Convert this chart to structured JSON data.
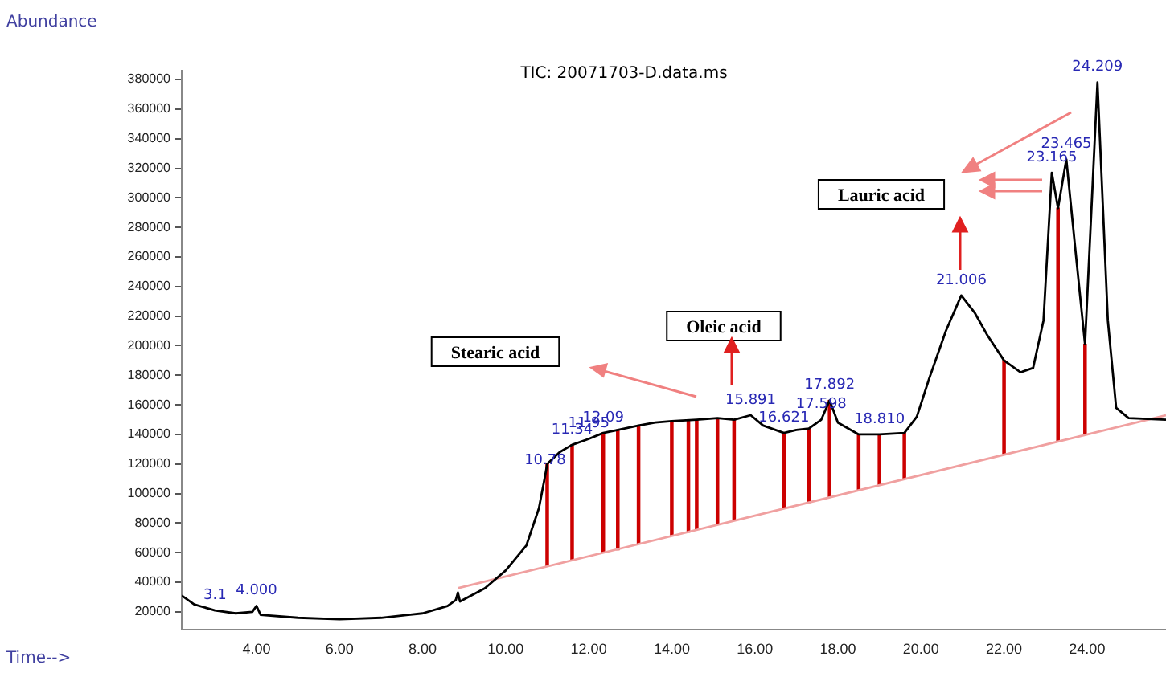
{
  "chart_data": {
    "type": "line",
    "title": "TIC: 20071703-D.data.ms",
    "xlabel": "Time-->",
    "ylabel": "Abundance",
    "xlim": [
      2.2,
      25.9
    ],
    "ylim": [
      8000,
      386000
    ],
    "xticks": [
      {
        "value": 4,
        "label": "4.00"
      },
      {
        "value": 6,
        "label": "6.00"
      },
      {
        "value": 8,
        "label": "8.00"
      },
      {
        "value": 10,
        "label": "10.00"
      },
      {
        "value": 12,
        "label": "12.00"
      },
      {
        "value": 14,
        "label": "14.00"
      },
      {
        "value": 16,
        "label": "16.00"
      },
      {
        "value": 18,
        "label": "18.00"
      },
      {
        "value": 20,
        "label": "20.00"
      },
      {
        "value": 22,
        "label": "22.00"
      },
      {
        "value": 24,
        "label": "24.00"
      }
    ],
    "yticks": [
      20000,
      40000,
      60000,
      80000,
      100000,
      120000,
      140000,
      160000,
      180000,
      200000,
      220000,
      240000,
      260000,
      280000,
      300000,
      320000,
      340000,
      360000,
      380000
    ],
    "grid": false,
    "legend": false,
    "marker": "none",
    "series": [
      {
        "color": "#000000",
        "x": [
          2.2,
          2.5,
          3.0,
          3.5,
          3.9,
          4.0,
          4.1,
          5.0,
          6.0,
          7.0,
          8.0,
          8.6,
          8.8,
          8.85,
          8.9,
          9.5,
          10.0,
          10.5,
          10.8,
          10.95,
          11.0,
          11.3,
          11.6,
          12.0,
          12.35,
          12.7,
          13.2,
          13.6,
          14.0,
          14.6,
          15.1,
          15.5,
          15.9,
          16.2,
          16.7,
          17.0,
          17.3,
          17.6,
          17.8,
          18.0,
          18.5,
          19.0,
          19.6,
          19.9,
          20.2,
          20.6,
          20.97,
          21.3,
          21.6,
          22.0,
          22.4,
          22.7,
          22.95,
          23.15,
          23.3,
          23.5,
          23.7,
          23.95,
          24.25,
          24.5,
          24.7,
          25.0,
          25.9
        ],
        "values": [
          31000,
          25000,
          21000,
          19000,
          20000,
          24000,
          18000,
          16000,
          15000,
          16000,
          19000,
          24000,
          28000,
          33000,
          27000,
          36000,
          48000,
          65000,
          90000,
          112000,
          120000,
          128000,
          133000,
          137000,
          141000,
          143000,
          146000,
          148000,
          149000,
          150000,
          151000,
          150000,
          153000,
          146000,
          141000,
          143000,
          144000,
          150000,
          163000,
          148000,
          140000,
          140000,
          141000,
          152000,
          178000,
          210000,
          234000,
          222000,
          207000,
          190000,
          182000,
          185000,
          217000,
          317000,
          293000,
          326000,
          270000,
          201000,
          378000,
          217000,
          158000,
          151000,
          150000
        ]
      },
      {
        "color": "#f0a0a0",
        "x": [
          8.85,
          25.9
        ],
        "values": [
          36000,
          153000
        ]
      },
      {
        "type": "bar",
        "color": "#cc0000",
        "x": [
          11.0,
          11.6,
          12.35,
          12.7,
          13.2,
          14.0,
          14.4,
          14.6,
          15.1,
          15.5,
          16.7,
          17.3,
          17.8,
          18.5,
          19.0,
          19.6,
          22.0,
          23.3,
          23.95
        ],
        "base": [
          51000,
          55000,
          60000,
          62000,
          66000,
          72000,
          74000,
          76000,
          79000,
          82000,
          90000,
          94000,
          98000,
          102000,
          106000,
          110000,
          127000,
          136000,
          140000
        ],
        "values": [
          69000,
          78000,
          81000,
          81000,
          80000,
          77000,
          76000,
          74000,
          72000,
          68000,
          51000,
          50000,
          65000,
          38000,
          34000,
          31000,
          63000,
          157000,
          61000
        ]
      }
    ],
    "annotations": [
      "Stearic acid",
      "Oleic acid",
      "Lauric acid",
      {
        "text": "3.1",
        "x": 3.0,
        "y": 21000
      },
      {
        "text": "4.000",
        "x": 4.0,
        "y": 24000
      },
      {
        "text": "10.78",
        "x": 10.95,
        "y": 112000
      },
      {
        "text": "11.34",
        "x": 11.6,
        "y": 133000
      },
      {
        "text": "11.95",
        "x": 12.0,
        "y": 137000
      },
      {
        "text": "12.09",
        "x": 12.35,
        "y": 141000
      },
      {
        "text": "15.891",
        "x": 15.9,
        "y": 153000
      },
      {
        "text": "16.621",
        "x": 16.7,
        "y": 141000
      },
      {
        "text": "17.892",
        "x": 17.8,
        "y": 163000
      },
      {
        "text": "17.598",
        "x": 17.6,
        "y": 150000
      },
      {
        "text": "18.810",
        "x": 19.0,
        "y": 140000
      },
      {
        "text": "21.006",
        "x": 20.97,
        "y": 234000
      },
      {
        "text": "23.165",
        "x": 23.15,
        "y": 317000
      },
      {
        "text": "23.465",
        "x": 23.5,
        "y": 326000
      },
      {
        "text": "24.209",
        "x": 24.25,
        "y": 378000
      }
    ]
  }
}
